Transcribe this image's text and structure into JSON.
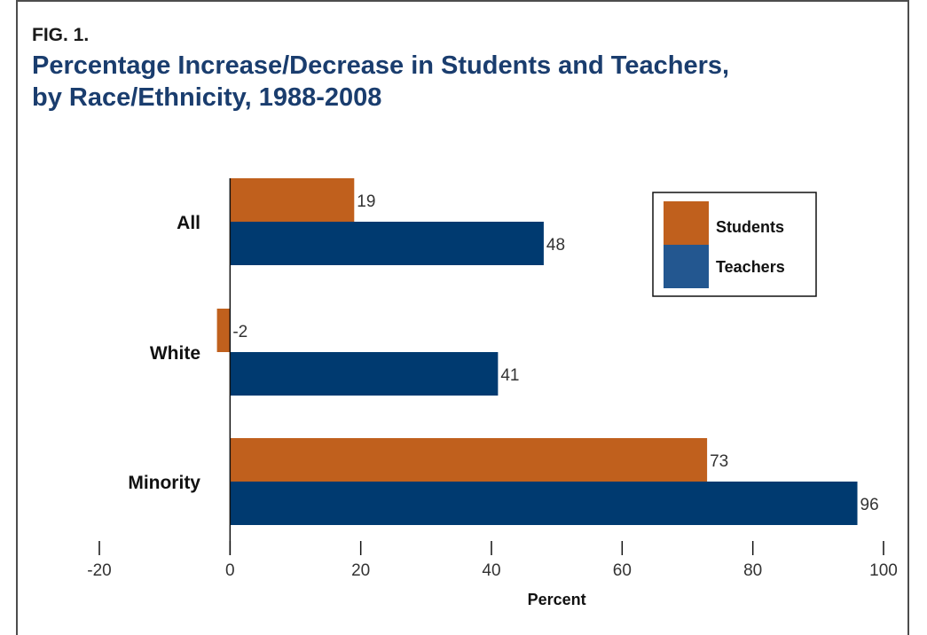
{
  "figure": {
    "label": "FIG. 1.",
    "title_line1": "Percentage Increase/Decrease in Students and Teachers,",
    "title_line2": "by Race/Ethnicity, 1988-2008"
  },
  "chart_data": {
    "type": "bar",
    "orientation": "horizontal",
    "categories": [
      "All",
      "White",
      "Minority"
    ],
    "series": [
      {
        "name": "Students",
        "values": [
          19,
          -2,
          73
        ],
        "color": "#c0601d"
      },
      {
        "name": "Teachers",
        "values": [
          48,
          41,
          96
        ],
        "color": "#003a70"
      }
    ],
    "legend_swatch_colors": [
      "#c0601d",
      "#235790"
    ],
    "xlabel": "Percent",
    "xlim": [
      -20,
      100
    ],
    "xticks": [
      -20,
      0,
      20,
      40,
      60,
      80,
      100
    ],
    "grid": false,
    "legend_position": "top-right"
  }
}
